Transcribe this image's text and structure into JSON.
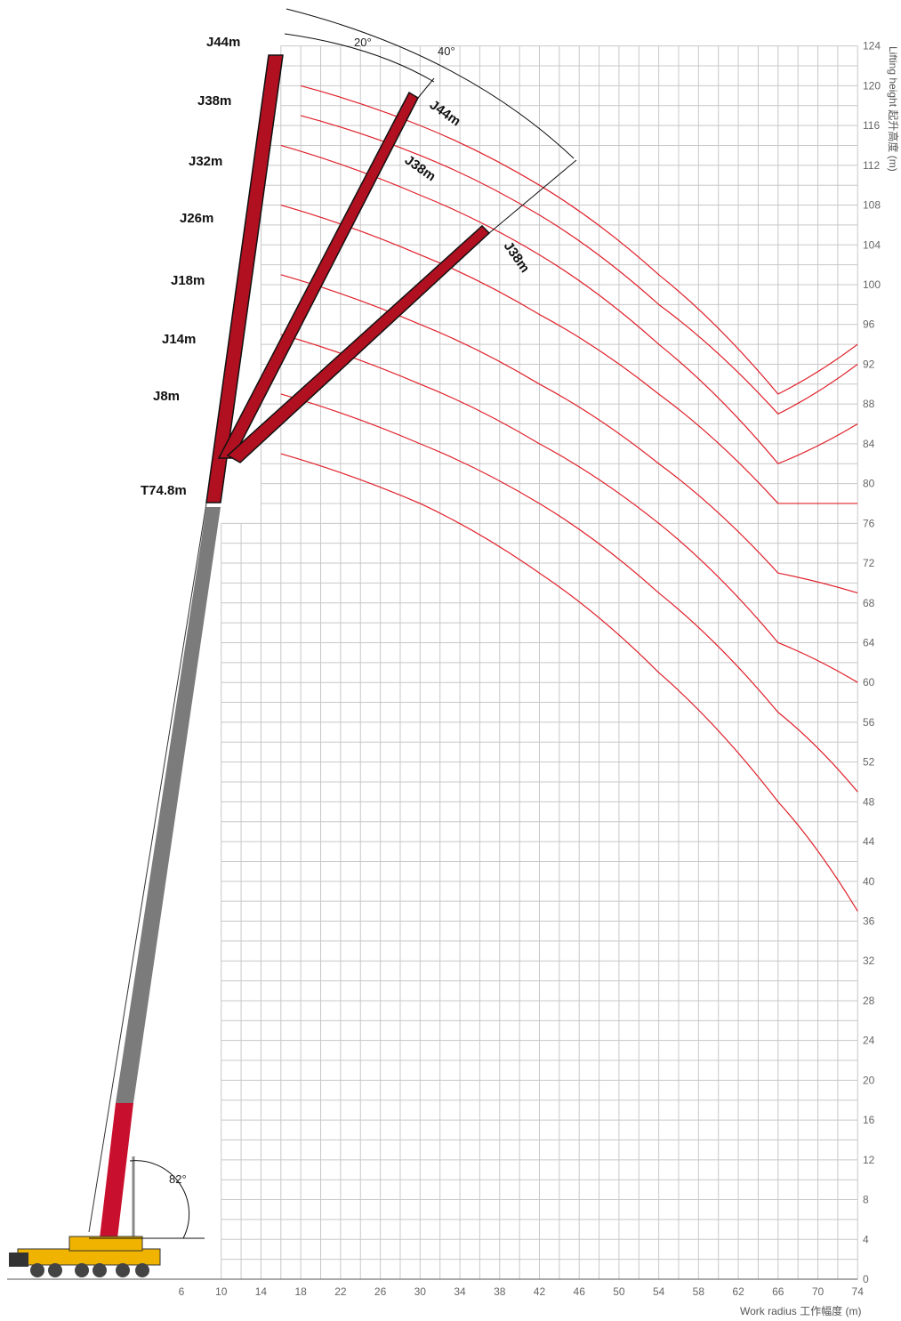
{
  "chart_data": {
    "type": "line",
    "xlabel": "Work radius 工作幅度 (m)",
    "ylabel": "Lifting height 起升高度 (m)",
    "x_ticks": [
      6,
      10,
      14,
      18,
      22,
      26,
      30,
      34,
      38,
      42,
      46,
      50,
      54,
      58,
      62,
      66,
      70,
      74
    ],
    "y_ticks": [
      0,
      4,
      8,
      12,
      16,
      20,
      24,
      28,
      32,
      36,
      40,
      44,
      48,
      52,
      56,
      60,
      64,
      68,
      72,
      76,
      80,
      84,
      88,
      92,
      96,
      100,
      104,
      108,
      112,
      116,
      120,
      124
    ],
    "xlim": [
      -10,
      74
    ],
    "ylim": [
      0,
      124
    ],
    "grid": true,
    "boom_angle_label": "82°",
    "jib_offset_labels": [
      "20°",
      "40°"
    ],
    "main_boom_label": "T74.8m",
    "jib_labels_vertical": [
      "J44m",
      "J38m",
      "J32m",
      "J26m",
      "J18m",
      "J14m",
      "J8m"
    ],
    "jib_labels_20deg": [
      "J44m",
      "J38m"
    ],
    "jib_labels_40deg": [
      "J38m"
    ],
    "series": [
      {
        "values": [
          [
            18,
            120
          ],
          [
            30,
            116
          ],
          [
            42,
            110
          ],
          [
            54,
            101
          ],
          [
            66,
            89
          ],
          [
            74,
            94
          ]
        ]
      },
      {
        "values": [
          [
            18,
            117
          ],
          [
            30,
            113
          ],
          [
            42,
            107
          ],
          [
            54,
            98
          ],
          [
            66,
            87
          ],
          [
            74,
            92
          ]
        ]
      },
      {
        "values": [
          [
            16,
            114
          ],
          [
            30,
            109
          ],
          [
            42,
            103
          ],
          [
            54,
            94
          ],
          [
            66,
            82
          ],
          [
            74,
            86
          ]
        ]
      },
      {
        "values": [
          [
            16,
            108
          ],
          [
            30,
            103
          ],
          [
            42,
            97
          ],
          [
            54,
            89
          ],
          [
            66,
            78
          ],
          [
            74,
            78
          ]
        ]
      },
      {
        "values": [
          [
            16,
            101
          ],
          [
            30,
            96
          ],
          [
            42,
            90
          ],
          [
            54,
            82
          ],
          [
            66,
            71
          ],
          [
            74,
            69
          ]
        ]
      },
      {
        "values": [
          [
            16,
            95
          ],
          [
            30,
            90
          ],
          [
            42,
            84
          ],
          [
            54,
            76
          ],
          [
            66,
            64
          ],
          [
            74,
            60
          ]
        ]
      },
      {
        "values": [
          [
            16,
            89
          ],
          [
            30,
            84
          ],
          [
            42,
            78
          ],
          [
            54,
            69
          ],
          [
            66,
            57
          ],
          [
            74,
            49
          ]
        ]
      },
      {
        "values": [
          [
            16,
            83
          ],
          [
            30,
            78
          ],
          [
            42,
            71
          ],
          [
            54,
            61
          ],
          [
            66,
            48
          ],
          [
            74,
            37
          ]
        ]
      }
    ]
  },
  "colors": {
    "grid": "#c8c8c8",
    "curve": "#e0202a",
    "boom": "#7b7b7b",
    "jib": "#b01020",
    "crane_body": "#f0b400"
  }
}
